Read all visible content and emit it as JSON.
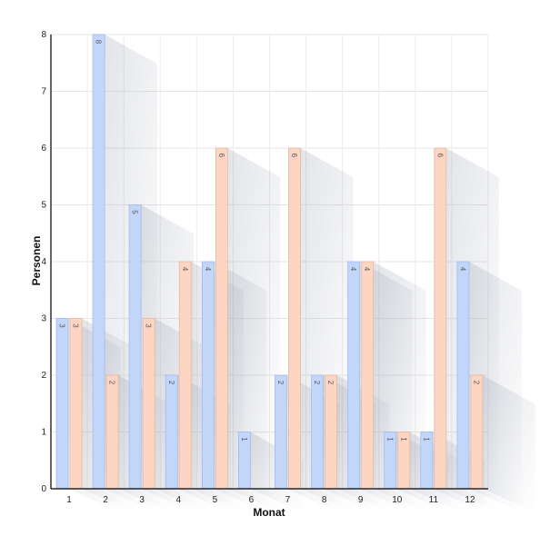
{
  "chart_data": {
    "type": "bar",
    "title": "",
    "xlabel": "Monat",
    "ylabel": "Personen",
    "categories": [
      "1",
      "2",
      "3",
      "4",
      "5",
      "6",
      "7",
      "8",
      "9",
      "10",
      "11",
      "12"
    ],
    "series": [
      {
        "values": [
          3,
          8,
          5,
          2,
          4,
          1,
          2,
          2,
          4,
          1,
          1,
          4
        ],
        "color": "#c2d6fa",
        "stroke": "#9fbbeb"
      },
      {
        "values": [
          3,
          2,
          3,
          4,
          6,
          0,
          6,
          2,
          4,
          1,
          6,
          2
        ],
        "color": "#fcd6c2",
        "stroke": "#e8b79d"
      }
    ],
    "y_ticks": [
      "0",
      "1",
      "2",
      "3",
      "4",
      "5",
      "6",
      "7",
      "8"
    ],
    "ylim": [
      0,
      8
    ],
    "grid": true,
    "legend": "none"
  }
}
